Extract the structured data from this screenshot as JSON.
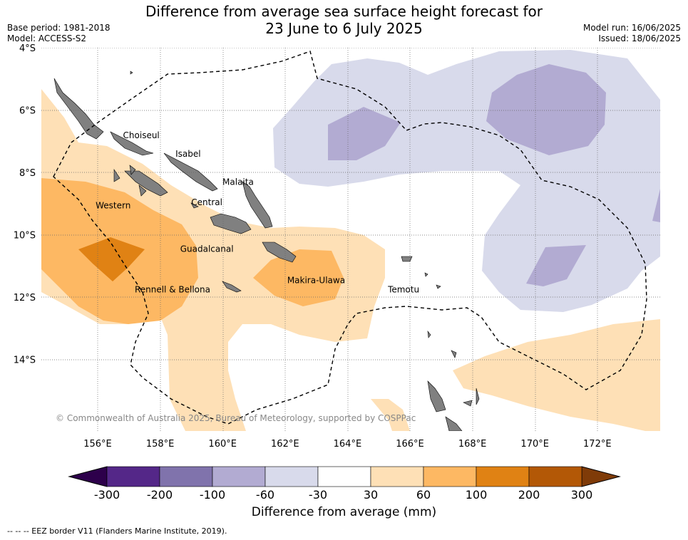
{
  "title_line1": "Difference from average sea surface height forecast for",
  "title_line2": "23 June to 6 July 2025",
  "base_period": "Base period: 1981-2018",
  "model": "Model: ACCESS-S2",
  "model_run": "Model run: 16/06/2025",
  "issued": "Issued: 18/06/2025",
  "copyright": "© Commonwealth of Australia 2025, Bureau of Meteorology, supported by COSPPac",
  "footnote": "--  --  -- EEZ border V11 (Flanders Marine Institute, 2019).",
  "lat_labels": [
    "4°S",
    "6°S",
    "8°S",
    "10°S",
    "12°S",
    "14°S"
  ],
  "lon_labels": [
    "156°E",
    "158°E",
    "160°E",
    "162°E",
    "164°E",
    "166°E",
    "168°E",
    "170°E",
    "172°E"
  ],
  "province_labels": [
    {
      "name": "Choiseul",
      "lon": 157.4,
      "lat": -6.9
    },
    {
      "name": "Isabel",
      "lon": 158.9,
      "lat": -7.5
    },
    {
      "name": "Malaita",
      "lon": 160.5,
      "lat": -8.4
    },
    {
      "name": "Western",
      "lon": 156.5,
      "lat": -9.15
    },
    {
      "name": "Central",
      "lon": 159.5,
      "lat": -9.05
    },
    {
      "name": "Guadalcanal",
      "lon": 159.5,
      "lat": -10.55
    },
    {
      "name": "Makira-Ulawa",
      "lon": 163.0,
      "lat": -11.55
    },
    {
      "name": "Rennell & Bellona",
      "lon": 158.4,
      "lat": -11.85
    },
    {
      "name": "Temotu",
      "lon": 165.8,
      "lat": -11.85
    }
  ],
  "colorbar": {
    "label": "Difference from average (mm)",
    "ticks": [
      "-300",
      "-200",
      "-100",
      "-60",
      "-30",
      "30",
      "60",
      "100",
      "200",
      "300"
    ],
    "colors": [
      "#542788",
      "#8073ac",
      "#b2abd2",
      "#d8daeb",
      "#ffffff",
      "#fee0b6",
      "#fdb863",
      "#e08214",
      "#b35806"
    ],
    "extend_low": "#2d004b",
    "extend_high": "#7f3b08"
  },
  "colors": {
    "land": "#808080",
    "eez": "#000000",
    "grid": "#666666"
  }
}
